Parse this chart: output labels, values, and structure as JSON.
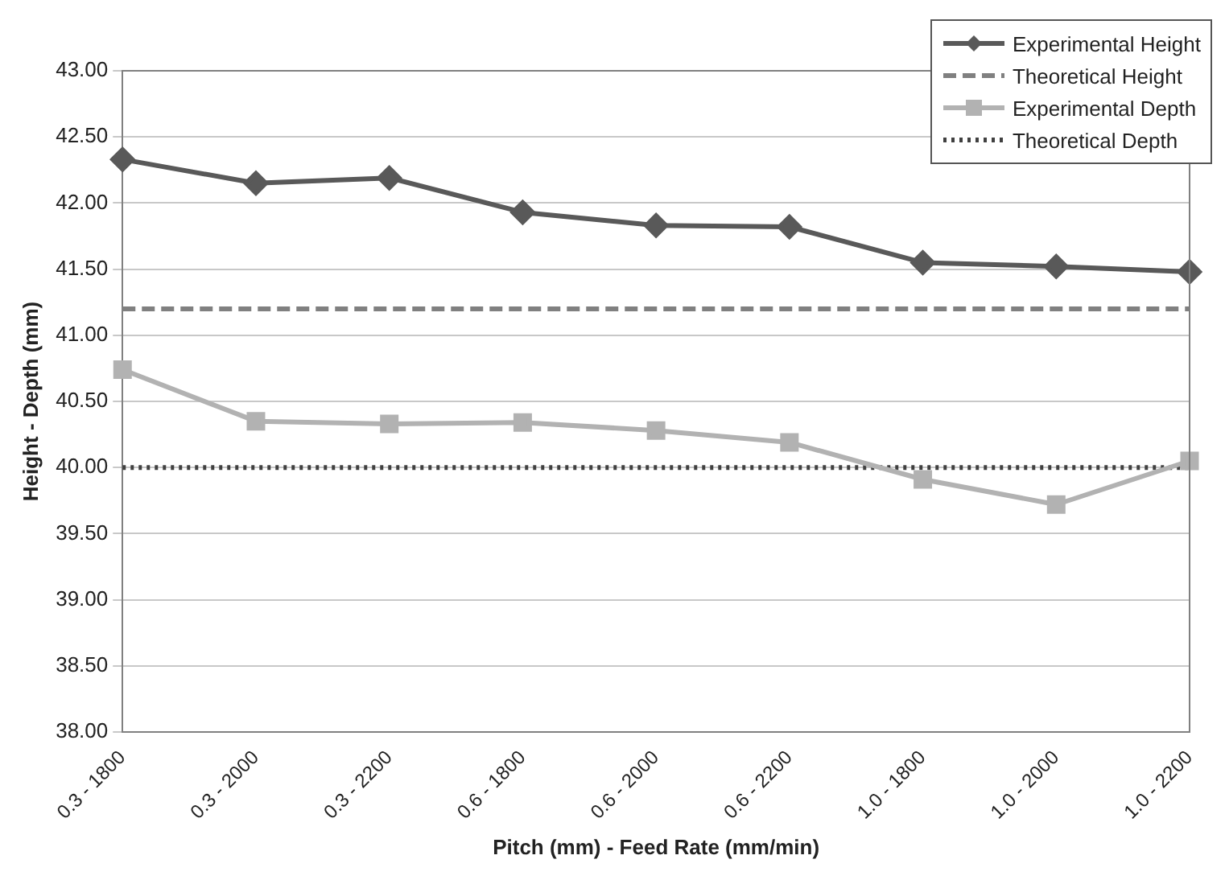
{
  "chart_data": {
    "type": "line",
    "xlabel": "Pitch (mm) - Feed Rate (mm/min)",
    "ylabel": "Height - Depth (mm)",
    "categories": [
      "0.3 - 1800",
      "0.3 - 2000",
      "0.3 - 2200",
      "0.6 - 1800",
      "0.6 - 2000",
      "0.6 - 2200",
      "1.0 - 1800",
      "1.0 - 2000",
      "1.0 - 2200"
    ],
    "series": [
      {
        "name": "Experimental Height",
        "color": "#595959",
        "marker": "diamond",
        "line_style": "solid",
        "values": [
          42.33,
          42.15,
          42.19,
          41.93,
          41.83,
          41.82,
          41.55,
          41.52,
          41.48
        ]
      },
      {
        "name": "Theoretical Height",
        "color": "#808080",
        "marker": "none",
        "line_style": "dashed",
        "values": [
          41.2,
          41.2,
          41.2,
          41.2,
          41.2,
          41.2,
          41.2,
          41.2,
          41.2
        ]
      },
      {
        "name": "Experimental Depth",
        "color": "#b2b2b2",
        "marker": "square",
        "line_style": "solid",
        "values": [
          40.74,
          40.35,
          40.33,
          40.34,
          40.28,
          40.19,
          39.91,
          39.72,
          40.05
        ]
      },
      {
        "name": "Theoretical Depth",
        "color": "#404040",
        "marker": "none",
        "line_style": "dotted",
        "values": [
          40.0,
          40.0,
          40.0,
          40.0,
          40.0,
          40.0,
          40.0,
          40.0,
          40.0
        ]
      }
    ],
    "ylim": [
      38,
      43
    ],
    "yticks": [
      {
        "value": 38,
        "label": "38.00"
      },
      {
        "value": 38.5,
        "label": "38.50"
      },
      {
        "value": 39,
        "label": "39.00"
      },
      {
        "value": 39.5,
        "label": "39.50"
      },
      {
        "value": 40,
        "label": "40.00"
      },
      {
        "value": 40.5,
        "label": "40.50"
      },
      {
        "value": 41,
        "label": "41.00"
      },
      {
        "value": 41.5,
        "label": "41.50"
      },
      {
        "value": 42,
        "label": "42.00"
      },
      {
        "value": 42.5,
        "label": "42.50"
      },
      {
        "value": 43,
        "label": "43.00"
      }
    ],
    "grid": "y",
    "legend": "top right"
  }
}
